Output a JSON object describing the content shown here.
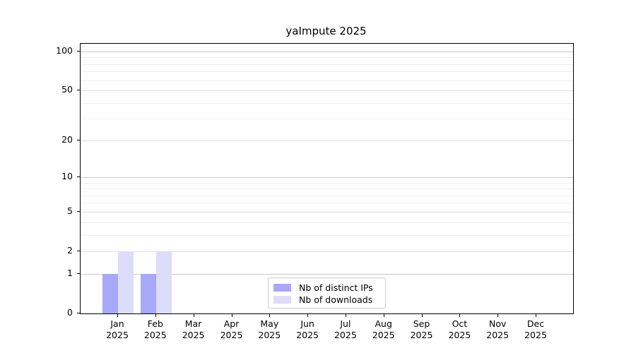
{
  "chart_data": {
    "type": "bar",
    "title": "yaImpute 2025",
    "categories": [
      "Jan",
      "Feb",
      "Mar",
      "Apr",
      "May",
      "Jun",
      "Jul",
      "Aug",
      "Sep",
      "Oct",
      "Nov",
      "Dec"
    ],
    "category_year_line": "2025",
    "series": [
      {
        "name": "Nb of distinct IPs",
        "color": "#a7a8f8",
        "values": [
          1,
          1,
          0,
          0,
          0,
          0,
          0,
          0,
          0,
          0,
          0,
          0
        ]
      },
      {
        "name": "Nb of downloads",
        "color": "#dcddfa",
        "values": [
          2,
          2,
          0,
          0,
          0,
          0,
          0,
          0,
          0,
          0,
          0,
          0
        ]
      }
    ],
    "y_scale": "log10(1+y)",
    "y_major_ticks": [
      0,
      1,
      2,
      5,
      10,
      20,
      50,
      100
    ],
    "y_minor_gridlines": [
      3,
      4,
      6,
      7,
      8,
      9,
      30,
      40,
      60,
      70,
      80,
      90
    ],
    "ylim": [
      0,
      115
    ],
    "grid": "horizontal",
    "legend_position": "lower-center"
  },
  "colors": {
    "background": "#ffffff",
    "axis": "#000000",
    "text": "#000000",
    "grid_decade": "#c8c8c8",
    "grid_major": "#e0e0e0",
    "grid_minor": "#eeeeee",
    "legend_border": "#cccccc"
  }
}
